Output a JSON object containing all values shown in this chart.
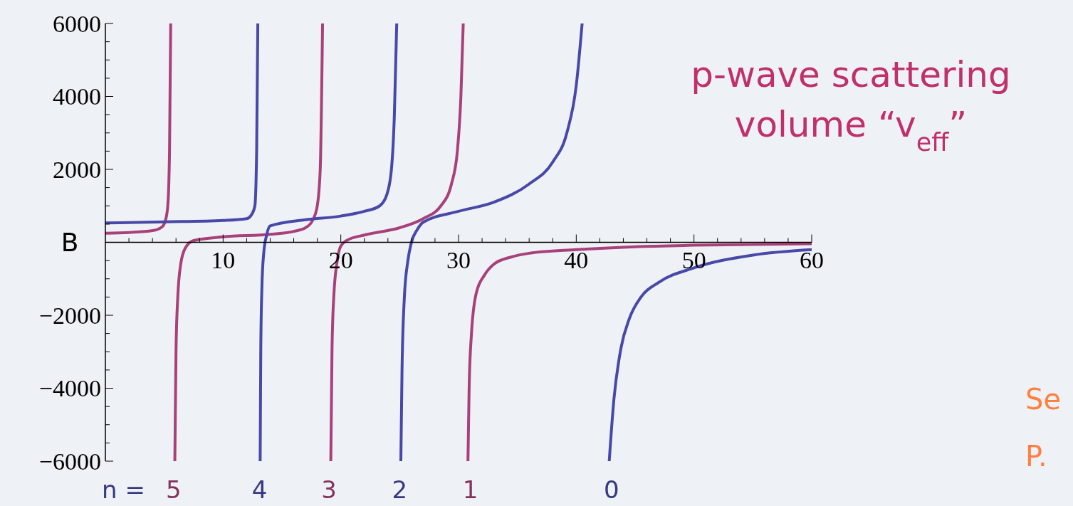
{
  "chart_data": {
    "type": "line",
    "title": "p-wave scattering volume “v$_{eff}$”",
    "ylabel": "B",
    "xlim": [
      0,
      60
    ],
    "ylim": [
      -6000,
      6000
    ],
    "xticks": [
      {
        "value": 2,
        "label": null
      },
      {
        "value": 4,
        "label": null
      },
      {
        "value": 6,
        "label": null
      },
      {
        "value": 8,
        "label": null
      },
      10,
      {
        "value": 12,
        "label": null
      },
      {
        "value": 14,
        "label": null
      },
      {
        "value": 16,
        "label": null
      },
      {
        "value": 18,
        "label": null
      },
      20,
      {
        "value": 22,
        "label": null
      },
      {
        "value": 24,
        "label": null
      },
      {
        "value": 26,
        "label": null
      },
      {
        "value": 28,
        "label": null
      },
      30,
      {
        "value": 32,
        "label": null
      },
      {
        "value": 34,
        "label": null
      },
      {
        "value": 36,
        "label": null
      },
      {
        "value": 38,
        "label": null
      },
      40,
      {
        "value": 42,
        "label": null
      },
      {
        "value": 44,
        "label": null
      },
      {
        "value": 46,
        "label": null
      },
      {
        "value": 48,
        "label": null
      },
      50,
      {
        "value": 52,
        "label": null
      },
      {
        "value": 54,
        "label": null
      },
      {
        "value": 56,
        "label": null
      },
      {
        "value": 58,
        "label": null
      },
      60
    ],
    "yticks": [
      -6000,
      {
        "value": -5500,
        "label": null
      },
      {
        "value": -5000,
        "label": null
      },
      {
        "value": -4500,
        "label": null
      },
      -4000,
      {
        "value": -3500,
        "label": null
      },
      {
        "value": -3000,
        "label": null
      },
      {
        "value": -2500,
        "label": null
      },
      -2000,
      {
        "value": -1500,
        "label": null
      },
      {
        "value": -1000,
        "label": null
      },
      {
        "value": -500,
        "label": null
      },
      {
        "value": 500,
        "label": null
      },
      {
        "value": 1000,
        "label": null
      },
      {
        "value": 1500,
        "label": null
      },
      2000,
      {
        "value": 2500,
        "label": null
      },
      {
        "value": 3000,
        "label": null
      },
      {
        "value": 3500,
        "label": null
      },
      4000,
      {
        "value": 4500,
        "label": null
      },
      {
        "value": 5000,
        "label": null
      },
      {
        "value": 5500,
        "label": null
      },
      6000
    ],
    "grid": false,
    "line_style": "solid",
    "series": [
      {
        "color": "#a8407a",
        "x": [
          0,
          2,
          4,
          4.8,
          5.1,
          5.3,
          5.45,
          5.55
        ],
        "values": [
          250,
          270,
          320,
          420,
          600,
          1000,
          2500,
          6000
        ]
      },
      {
        "color": "#4848a8",
        "x": [
          0,
          5,
          10,
          12,
          12.4,
          12.7,
          12.85,
          12.95
        ],
        "values": [
          530,
          560,
          600,
          650,
          750,
          1000,
          2500,
          6000
        ]
      },
      {
        "color": "#a8407a",
        "x": [
          5.9,
          6.0,
          6.15,
          6.4,
          6.8,
          7.5,
          10,
          14,
          16,
          17,
          17.6,
          18.0,
          18.25,
          18.45
        ],
        "values": [
          -6000,
          -3000,
          -1500,
          -600,
          -150,
          50,
          150,
          220,
          300,
          400,
          600,
          1000,
          2000,
          6000
        ]
      },
      {
        "color": "#4848a8",
        "x": [
          13.15,
          13.2,
          13.3,
          13.45,
          13.7,
          14,
          17,
          20,
          22,
          23.3,
          23.9,
          24.3,
          24.55,
          24.75
        ],
        "values": [
          -6000,
          -3000,
          -1200,
          -300,
          200,
          450,
          620,
          720,
          850,
          1000,
          1300,
          2000,
          3500,
          6000
        ]
      },
      {
        "color": "#a8407a",
        "x": [
          19.15,
          19.25,
          19.4,
          19.7,
          20,
          20.5,
          22,
          25,
          27,
          28.5,
          29.4,
          29.9,
          30.2,
          30.4
        ],
        "values": [
          -6000,
          -3000,
          -1500,
          -500,
          -100,
          50,
          200,
          400,
          650,
          1000,
          1600,
          2500,
          4000,
          6000
        ]
      },
      {
        "color": "#4848a8",
        "x": [
          25.1,
          25.2,
          25.4,
          25.7,
          26,
          26.5,
          27,
          30,
          33,
          36,
          38,
          39.2,
          40,
          40.5
        ],
        "values": [
          -6000,
          -3500,
          -1500,
          -500,
          0,
          350,
          550,
          850,
          1100,
          1600,
          2200,
          3000,
          4300,
          6000
        ]
      },
      {
        "color": "#a8407a",
        "x": [
          30.8,
          30.9,
          31.1,
          31.5,
          32.2,
          33,
          34.5,
          36,
          40,
          45,
          50,
          60
        ],
        "values": [
          -6000,
          -4000,
          -2500,
          -1400,
          -900,
          -600,
          -400,
          -300,
          -200,
          -120,
          -80,
          -40
        ]
      },
      {
        "color": "#4848a8",
        "x": [
          42.8,
          43.2,
          43.8,
          44.5,
          45.5,
          47,
          50,
          55,
          60
        ],
        "values": [
          -6000,
          -4300,
          -2900,
          -2100,
          -1500,
          -1100,
          -700,
          -350,
          -200
        ]
      }
    ],
    "annotations": [
      "n =",
      {
        "text": "5",
        "x": 5.8,
        "y": -6000
      },
      {
        "text": "4",
        "x": 13.1,
        "y": -6000
      },
      {
        "text": "3",
        "x": 19,
        "y": -6000
      },
      {
        "text": "2",
        "x": 25,
        "y": -6000
      },
      {
        "text": "1",
        "x": 31,
        "y": -6000
      },
      {
        "text": "0",
        "x": 43,
        "y": -6000
      },
      "Se",
      "P."
    ]
  }
}
